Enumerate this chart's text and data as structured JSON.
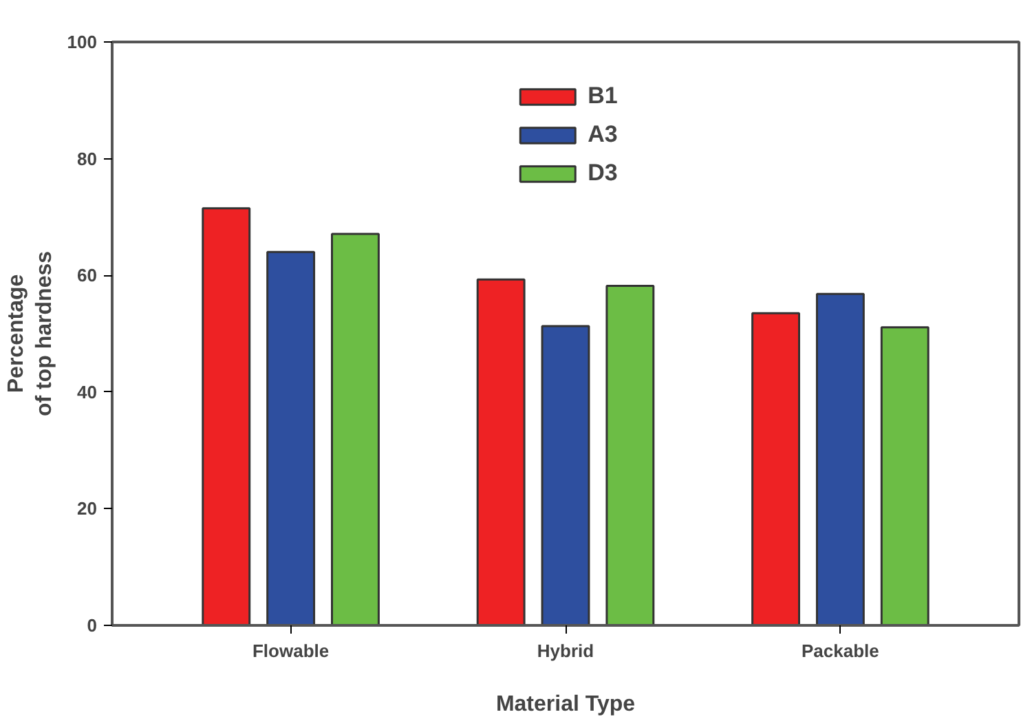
{
  "chart_data": {
    "type": "bar",
    "xlabel": "Material Type",
    "ylabel": "Percentage\nof top hardness",
    "categories": [
      "Flowable",
      "Hybrid",
      "Packable"
    ],
    "series": [
      {
        "name": "B1",
        "color": "#ee2224",
        "values": [
          71.5,
          59.3,
          53.5
        ]
      },
      {
        "name": "A3",
        "color": "#2e4f9f",
        "values": [
          64.0,
          51.3,
          56.8
        ]
      },
      {
        "name": "D3",
        "color": "#6cbd45",
        "values": [
          67.1,
          58.2,
          51.1
        ]
      }
    ],
    "ylim": [
      0,
      100
    ],
    "yticks": [
      0,
      20,
      40,
      60,
      80,
      100
    ],
    "grid": false,
    "legend": "top"
  }
}
